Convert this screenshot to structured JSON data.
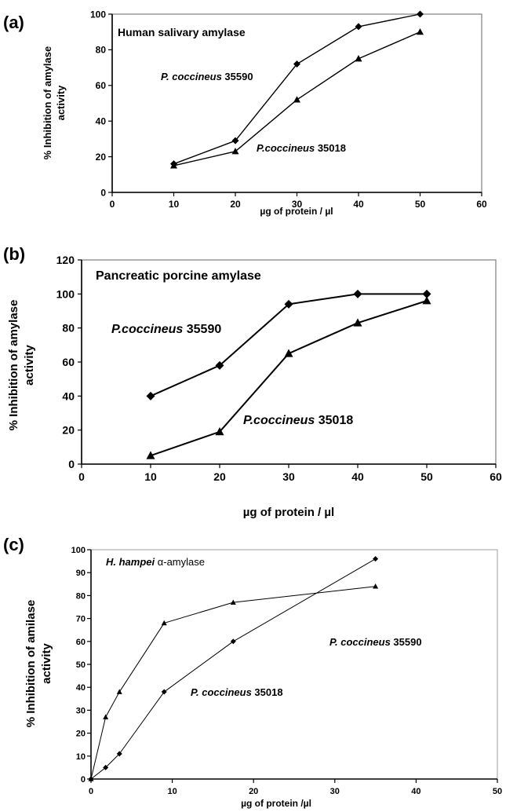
{
  "chart_data": [
    {
      "panel_label": "(a)",
      "type": "line",
      "title": "Human salivary amylase",
      "xlabel": "µg of protein / µl",
      "ylabel_line1": "% Inhibition of amylase",
      "ylabel_line2": "activity",
      "xlim": [
        0,
        60
      ],
      "ylim": [
        0,
        100
      ],
      "xticks": [
        "0",
        "10",
        "20",
        "30",
        "40",
        "50",
        "60"
      ],
      "yticks": [
        "0",
        "20",
        "40",
        "60",
        "80",
        "100"
      ],
      "grid": false,
      "series": [
        {
          "name_italic": "P. coccineus",
          "name_rest": " 35590",
          "marker": "diamond",
          "x": [
            10,
            20,
            30,
            40,
            50
          ],
          "y": [
            16,
            29,
            72,
            93,
            100
          ]
        },
        {
          "name_italic": "P.coccineus",
          "name_rest": " 35018",
          "marker": "triangle",
          "x": [
            10,
            20,
            30,
            40,
            50
          ],
          "y": [
            15,
            23,
            52,
            75,
            90
          ]
        }
      ]
    },
    {
      "panel_label": "(b)",
      "type": "line",
      "title": "Pancreatic porcine amylase",
      "xlabel": "µg of protein / µl",
      "ylabel_line1": "% Inhibition of amylase",
      "ylabel_line2": "activity",
      "xlim": [
        0,
        60
      ],
      "ylim": [
        0,
        120
      ],
      "xticks": [
        "0",
        "10",
        "20",
        "30",
        "40",
        "50",
        "60"
      ],
      "yticks": [
        "0",
        "20",
        "40",
        "60",
        "80",
        "100",
        "120"
      ],
      "grid": false,
      "series": [
        {
          "name_italic": "P.coccineus",
          "name_rest": " 35590",
          "marker": "diamond",
          "x": [
            10,
            20,
            30,
            40,
            50
          ],
          "y": [
            40,
            58,
            94,
            100,
            100
          ]
        },
        {
          "name_italic": "P.coccineus",
          "name_rest": " 35018",
          "marker": "triangle",
          "x": [
            10,
            20,
            30,
            40,
            50
          ],
          "y": [
            5,
            19,
            65,
            83,
            96
          ]
        }
      ]
    },
    {
      "panel_label": "(c)",
      "type": "line",
      "title_italic": "H. hampei",
      "title_rest": " α-amylase",
      "xlabel": "µg of protein /µl",
      "ylabel_line1": "% Inhibition of amilase",
      "ylabel_line2": "activity",
      "xlim": [
        0,
        50
      ],
      "ylim": [
        0,
        100
      ],
      "xticks": [
        "0",
        "10",
        "20",
        "30",
        "40",
        "50"
      ],
      "yticks": [
        "0",
        "10",
        "20",
        "30",
        "40",
        "50",
        "60",
        "70",
        "80",
        "90",
        "100"
      ],
      "grid": false,
      "series": [
        {
          "name_italic": "P. coccineus",
          "name_rest": " 35590",
          "marker": "triangle",
          "x": [
            0,
            1.8,
            3.5,
            9,
            17.5,
            35
          ],
          "y": [
            0,
            27,
            38,
            68,
            77,
            84
          ]
        },
        {
          "name_italic": "P. coccineus",
          "name_rest": " 35018",
          "marker": "diamond",
          "x": [
            0,
            1.8,
            3.5,
            9,
            17.5,
            35
          ],
          "y": [
            0,
            5,
            11,
            38,
            60,
            96
          ]
        }
      ]
    }
  ]
}
